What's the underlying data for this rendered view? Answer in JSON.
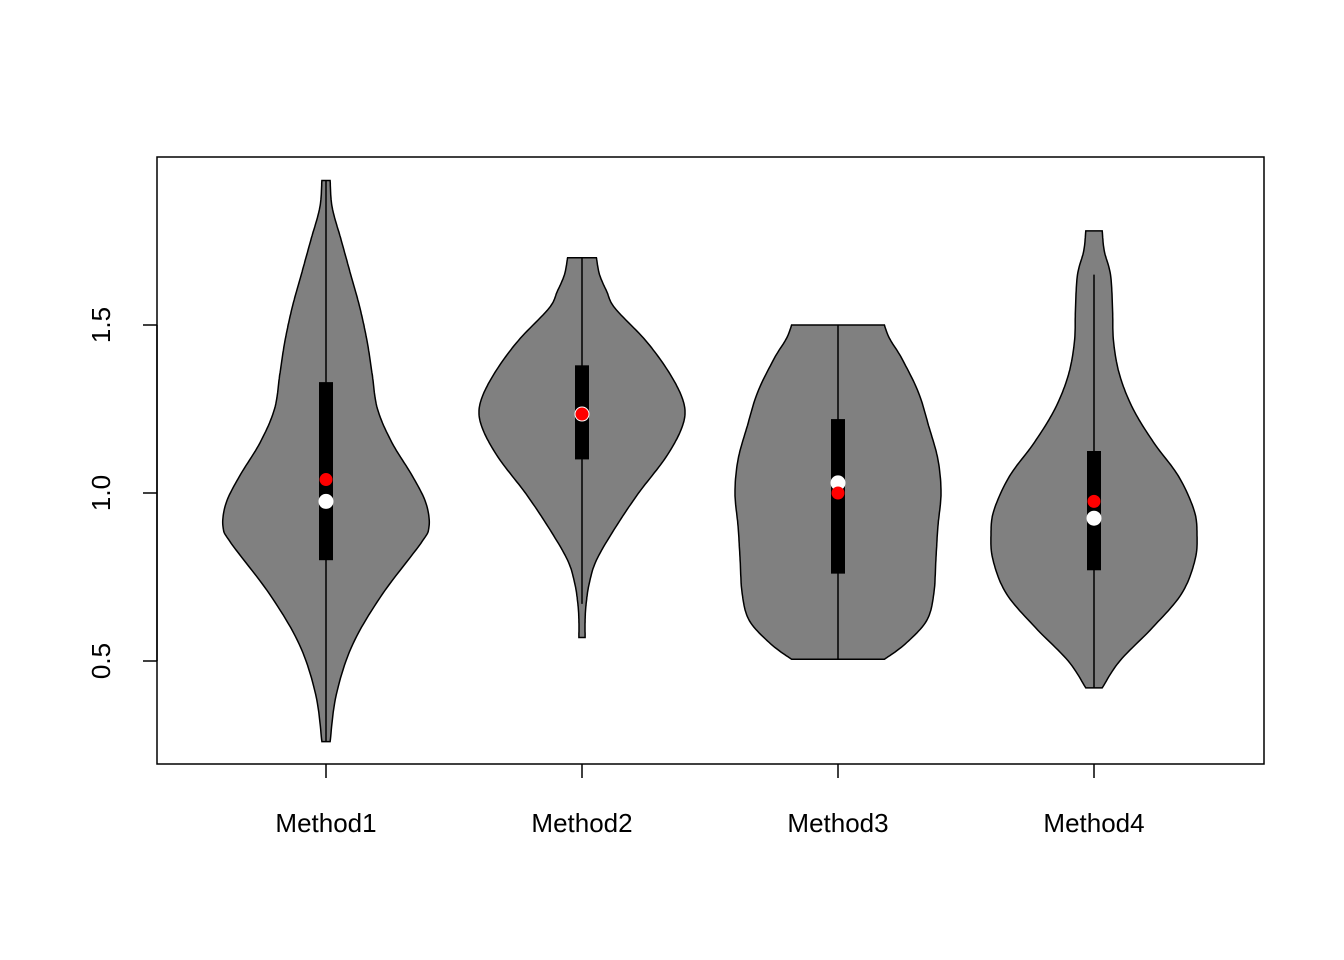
{
  "chart_data": {
    "type": "violin",
    "title": "",
    "xlabel": "",
    "ylabel": "",
    "ylim": [
      0.2,
      2.0
    ],
    "yticks": [
      0.5,
      1.0,
      1.5
    ],
    "ytick_labels": [
      "0.5",
      "1.0",
      "1.5"
    ],
    "categories": [
      "Method1",
      "Method2",
      "Method3",
      "Method4"
    ],
    "colors": {
      "violin_fill": "#808080",
      "outline": "#000000",
      "median_point": "#ffffff",
      "mean_point": "#ff0000"
    },
    "series": [
      {
        "name": "Method1",
        "min": 0.26,
        "max": 1.93,
        "whisker_low": 0.26,
        "whisker_high": 1.93,
        "q1": 0.8,
        "q3": 1.33,
        "median": 0.975,
        "mean": 1.04,
        "density": [
          [
            0.26,
            0.04
          ],
          [
            0.4,
            0.1
          ],
          [
            0.55,
            0.26
          ],
          [
            0.7,
            0.55
          ],
          [
            0.85,
            0.92
          ],
          [
            0.9,
            1.0
          ],
          [
            0.97,
            0.97
          ],
          [
            1.05,
            0.84
          ],
          [
            1.15,
            0.64
          ],
          [
            1.25,
            0.5
          ],
          [
            1.35,
            0.45
          ],
          [
            1.45,
            0.4
          ],
          [
            1.55,
            0.33
          ],
          [
            1.65,
            0.24
          ],
          [
            1.75,
            0.15
          ],
          [
            1.85,
            0.06
          ],
          [
            1.93,
            0.04
          ]
        ]
      },
      {
        "name": "Method2",
        "min": 0.57,
        "max": 1.7,
        "whisker_low": 0.67,
        "whisker_high": 1.7,
        "q1": 1.1,
        "q3": 1.38,
        "median": 1.235,
        "mean": 1.235,
        "density": [
          [
            0.57,
            0.03
          ],
          [
            0.62,
            0.03
          ],
          [
            0.67,
            0.04
          ],
          [
            0.73,
            0.07
          ],
          [
            0.8,
            0.14
          ],
          [
            0.9,
            0.33
          ],
          [
            1.0,
            0.55
          ],
          [
            1.1,
            0.8
          ],
          [
            1.18,
            0.95
          ],
          [
            1.24,
            1.0
          ],
          [
            1.3,
            0.95
          ],
          [
            1.38,
            0.8
          ],
          [
            1.46,
            0.6
          ],
          [
            1.55,
            0.32
          ],
          [
            1.6,
            0.24
          ],
          [
            1.65,
            0.17
          ],
          [
            1.7,
            0.14
          ]
        ]
      },
      {
        "name": "Method3",
        "min": 0.505,
        "max": 1.5,
        "whisker_low": 0.505,
        "whisker_high": 1.5,
        "q1": 0.76,
        "q3": 1.22,
        "median": 1.03,
        "mean": 1.0,
        "density": [
          [
            0.505,
            0.45
          ],
          [
            0.55,
            0.65
          ],
          [
            0.62,
            0.86
          ],
          [
            0.7,
            0.93
          ],
          [
            0.8,
            0.95
          ],
          [
            0.9,
            0.97
          ],
          [
            1.0,
            1.0
          ],
          [
            1.1,
            0.97
          ],
          [
            1.2,
            0.88
          ],
          [
            1.3,
            0.78
          ],
          [
            1.4,
            0.62
          ],
          [
            1.46,
            0.5
          ],
          [
            1.5,
            0.45
          ]
        ]
      },
      {
        "name": "Method4",
        "min": 0.42,
        "max": 1.78,
        "whisker_low": 0.42,
        "whisker_high": 1.65,
        "q1": 0.77,
        "q3": 1.125,
        "median": 0.925,
        "mean": 0.975,
        "density": [
          [
            0.42,
            0.08
          ],
          [
            0.5,
            0.25
          ],
          [
            0.6,
            0.57
          ],
          [
            0.7,
            0.85
          ],
          [
            0.8,
            0.98
          ],
          [
            0.88,
            1.0
          ],
          [
            0.95,
            0.97
          ],
          [
            1.05,
            0.82
          ],
          [
            1.15,
            0.58
          ],
          [
            1.25,
            0.38
          ],
          [
            1.35,
            0.25
          ],
          [
            1.45,
            0.19
          ],
          [
            1.55,
            0.18
          ],
          [
            1.65,
            0.16
          ],
          [
            1.72,
            0.1
          ],
          [
            1.78,
            0.08
          ]
        ]
      }
    ]
  }
}
